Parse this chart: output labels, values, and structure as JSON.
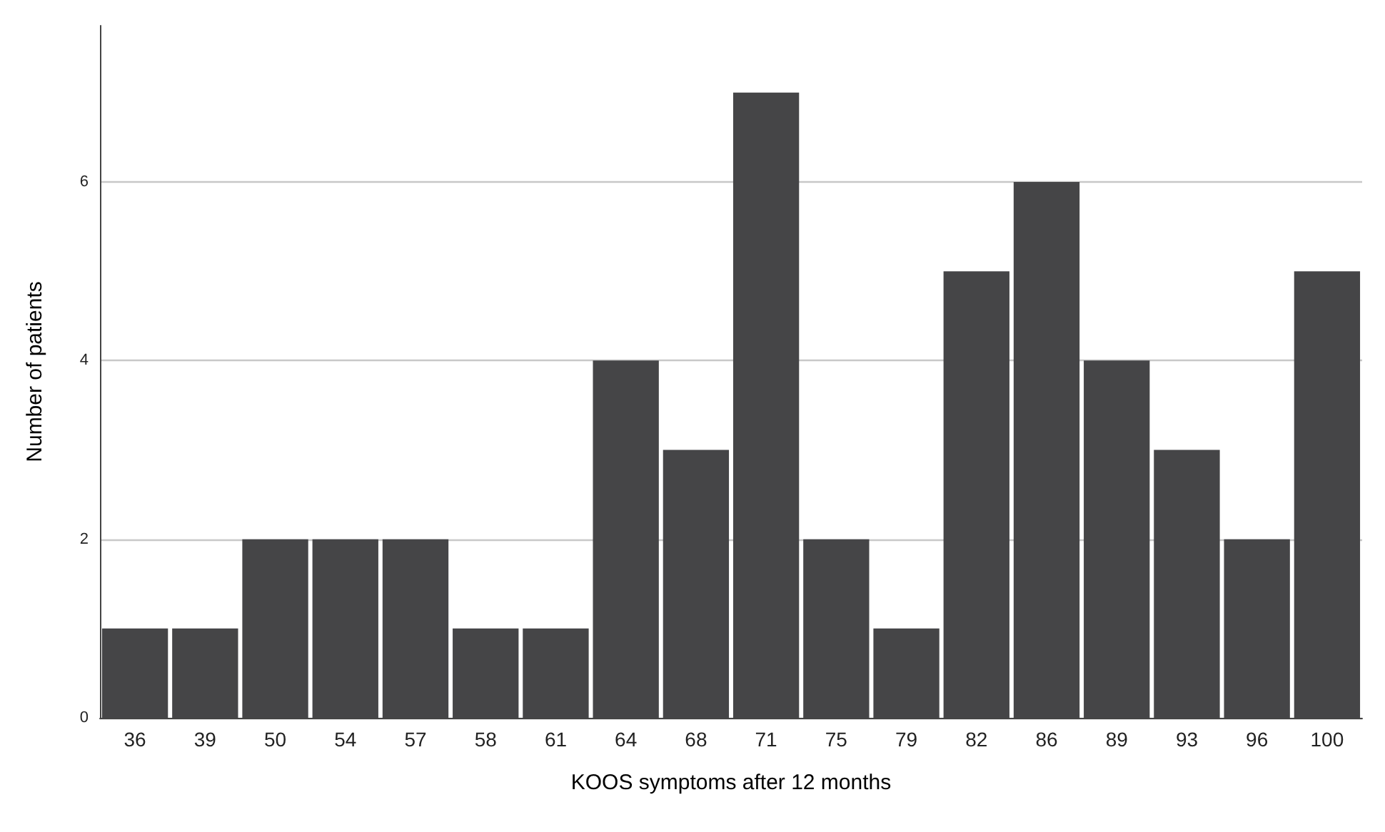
{
  "chart_data": {
    "type": "bar",
    "xlabel": "KOOS symptoms after 12 months",
    "ylabel": "Number of patients",
    "categories": [
      "36",
      "39",
      "50",
      "54",
      "57",
      "58",
      "61",
      "64",
      "68",
      "71",
      "75",
      "79",
      "82",
      "86",
      "89",
      "93",
      "96",
      "100"
    ],
    "values": [
      1,
      1,
      2,
      2,
      2,
      1,
      1,
      4,
      3,
      7,
      2,
      1,
      5,
      6,
      4,
      3,
      2,
      5
    ],
    "color": "#454547",
    "ylim": [
      0,
      7.75
    ],
    "yticks": [
      0,
      2,
      4,
      6
    ],
    "grid": "y"
  }
}
